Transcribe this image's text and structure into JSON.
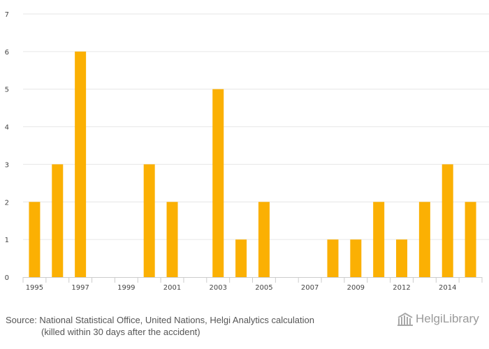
{
  "chart_data": {
    "type": "bar",
    "title": "",
    "xlabel": "",
    "ylabel": "",
    "ylim": [
      0,
      7
    ],
    "yticks": [
      0,
      1,
      2,
      3,
      4,
      5,
      6,
      7
    ],
    "categories": [
      "1995",
      "1996",
      "1997",
      "1998",
      "1999",
      "2000",
      "2001",
      "2002",
      "2003",
      "2004",
      "2005",
      "2006",
      "2007",
      "2008",
      "2009",
      "2010",
      "2012",
      "2013",
      "2014",
      "2015"
    ],
    "values": [
      2,
      3,
      6,
      0,
      0,
      3,
      2,
      0,
      5,
      1,
      2,
      0,
      0,
      1,
      1,
      2,
      1,
      2,
      3,
      2
    ],
    "xtick_labels": [
      "1995",
      "1997",
      "1999",
      "2001",
      "2003",
      "2005",
      "2007",
      "2009",
      "2012",
      "2014"
    ],
    "bar_color": "#FBB003",
    "grid": true
  },
  "footer": {
    "source_line1": "Source: National Statistical Office, United Nations, Helgi Analytics calculation",
    "source_line2": "(killed within 30 days after the accident)",
    "logo_text": "HelgiLibrary"
  }
}
